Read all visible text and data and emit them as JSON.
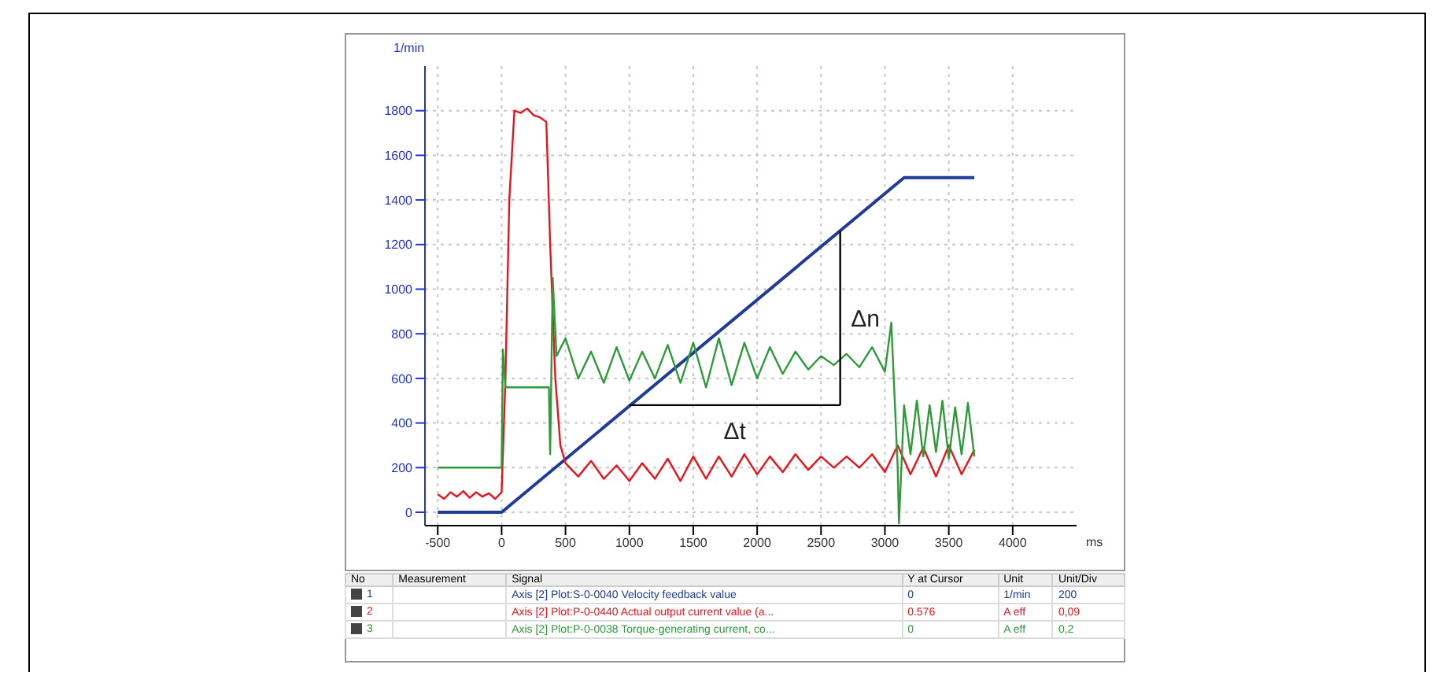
{
  "chart_data": {
    "type": "line",
    "xlabel": "ms",
    "ylabel": "1/min",
    "xlim": [
      -600,
      4500
    ],
    "ylim": [
      -60,
      2000
    ],
    "xticks": [
      -500,
      0,
      500,
      1000,
      1500,
      2000,
      2500,
      3000,
      3500,
      4000
    ],
    "yticks": [
      0,
      200,
      400,
      600,
      800,
      1000,
      1200,
      1400,
      1600,
      1800
    ],
    "grid": true,
    "legend": "bottom",
    "series": [
      {
        "name": "Axis [2] Plot:S-0-0040 Velocity feedback value",
        "color": "#1f3c99",
        "x": [
          -500,
          0,
          3150,
          3700
        ],
        "values": [
          0,
          0,
          1500,
          1500
        ]
      },
      {
        "name": "Axis [2] Plot:P-0-0440 Actual output current value (a...",
        "color": "#e8141c",
        "x": [
          -500,
          -450,
          -400,
          -350,
          -300,
          -250,
          -200,
          -150,
          -100,
          -50,
          0,
          30,
          60,
          100,
          150,
          200,
          250,
          300,
          350,
          380,
          420,
          460,
          500,
          600,
          700,
          800,
          900,
          1000,
          1100,
          1200,
          1300,
          1400,
          1500,
          1600,
          1700,
          1800,
          1900,
          2000,
          2100,
          2200,
          2300,
          2400,
          2500,
          2600,
          2700,
          2800,
          2900,
          3000,
          3100,
          3200,
          3300,
          3400,
          3500,
          3600,
          3700
        ],
        "values": [
          80,
          60,
          90,
          70,
          95,
          65,
          90,
          70,
          85,
          60,
          90,
          600,
          1400,
          1800,
          1790,
          1810,
          1780,
          1770,
          1750,
          1200,
          600,
          300,
          220,
          160,
          230,
          150,
          210,
          140,
          220,
          150,
          240,
          140,
          250,
          150,
          250,
          160,
          260,
          170,
          250,
          180,
          260,
          190,
          250,
          200,
          250,
          200,
          260,
          180,
          300,
          170,
          290,
          160,
          300,
          170,
          280
        ]
      },
      {
        "name": "Axis [2] Plot:P-0-0038 Torque-generating current, co...",
        "color": "#2e9a3a",
        "x": [
          -500,
          0,
          10,
          30,
          370,
          380,
          400,
          430,
          500,
          600,
          700,
          800,
          900,
          1000,
          1100,
          1200,
          1300,
          1400,
          1500,
          1600,
          1700,
          1800,
          1900,
          2000,
          2100,
          2200,
          2300,
          2400,
          2500,
          2600,
          2700,
          2800,
          2900,
          3000,
          3050,
          3100,
          3110,
          3150,
          3200,
          3250,
          3300,
          3350,
          3400,
          3450,
          3500,
          3550,
          3600,
          3650,
          3700
        ],
        "values": [
          200,
          200,
          730,
          560,
          560,
          260,
          1050,
          700,
          780,
          600,
          720,
          580,
          740,
          590,
          720,
          600,
          750,
          580,
          760,
          560,
          780,
          570,
          760,
          600,
          740,
          620,
          720,
          640,
          700,
          660,
          710,
          650,
          740,
          630,
          850,
          200,
          -50,
          480,
          260,
          500,
          250,
          480,
          270,
          500,
          240,
          470,
          260,
          490,
          250
        ]
      },
      {
        "type": "line",
        "color": "#000000",
        "x": [
          1000,
          2650
        ],
        "values": [
          480,
          480
        ]
      },
      {
        "type": "line",
        "color": "#000000",
        "x": [
          2650,
          2650
        ],
        "values": [
          480,
          1260
        ]
      }
    ],
    "annotations": [
      "Δt",
      "Δn",
      "No",
      "Measurement",
      "Signal",
      "Y at Cursor",
      "Unit",
      "Unit/Div",
      "1",
      "0",
      "1/min",
      "200",
      "2",
      "0.576",
      "A eff",
      "0,09",
      "3",
      "0",
      "A eff",
      "0,2"
    ]
  }
}
